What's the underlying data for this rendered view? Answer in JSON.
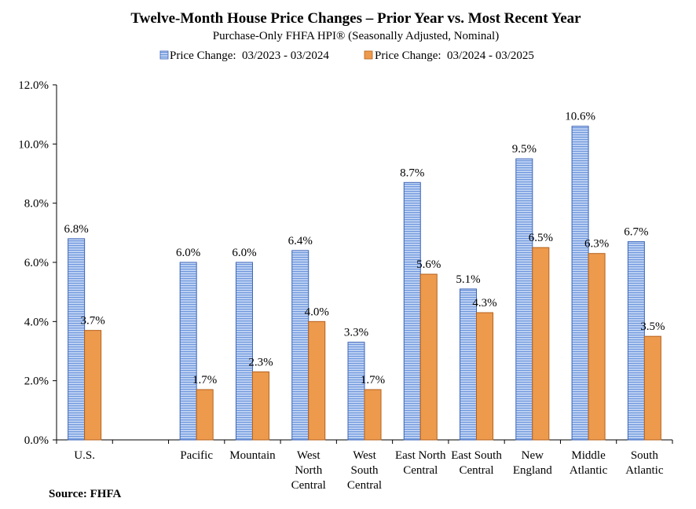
{
  "chart_data": {
    "type": "bar",
    "title": "Twelve-Month House Price Changes – Prior Year vs. Most Recent Year",
    "subtitle": "Purchase-Only FHFA HPI® (Seasonally Adjusted, Nominal)",
    "source": "Source: FHFA",
    "categories": [
      [
        "U.S."
      ],
      [],
      [
        "Pacific"
      ],
      [
        "Mountain"
      ],
      [
        "West",
        "North",
        "Central"
      ],
      [
        "West",
        "South",
        "Central"
      ],
      [
        "East North",
        "Central"
      ],
      [
        "East South",
        "Central"
      ],
      [
        "New",
        "England"
      ],
      [
        "Middle",
        "Atlantic"
      ],
      [
        "South",
        "Atlantic"
      ]
    ],
    "series": [
      {
        "name": "Price Change:  03/2023 - 03/2024",
        "color": "#8eb1e8",
        "values": [
          6.8,
          null,
          6.0,
          6.0,
          6.4,
          3.3,
          8.7,
          5.1,
          9.5,
          10.6,
          6.7
        ],
        "labels": [
          "6.8%",
          "",
          "6.0%",
          "6.0%",
          "6.4%",
          "3.3%",
          "8.7%",
          "5.1%",
          "9.5%",
          "10.6%",
          "6.7%"
        ]
      },
      {
        "name": "Price Change:  03/2024 - 03/2025",
        "color": "#ee9a4d",
        "values": [
          3.7,
          null,
          1.7,
          2.3,
          4.0,
          1.7,
          5.6,
          4.3,
          6.5,
          6.3,
          3.5
        ],
        "labels": [
          "3.7%",
          "",
          "1.7%",
          "2.3%",
          "4.0%",
          "1.7%",
          "5.6%",
          "4.3%",
          "6.5%",
          "6.3%",
          "3.5%"
        ]
      }
    ],
    "yticks": [
      "0.0%",
      "2.0%",
      "4.0%",
      "6.0%",
      "8.0%",
      "10.0%",
      "12.0%"
    ],
    "ylim": [
      0,
      12
    ],
    "xlabel": "",
    "ylabel": "",
    "grid": false,
    "legend_position": "top"
  }
}
